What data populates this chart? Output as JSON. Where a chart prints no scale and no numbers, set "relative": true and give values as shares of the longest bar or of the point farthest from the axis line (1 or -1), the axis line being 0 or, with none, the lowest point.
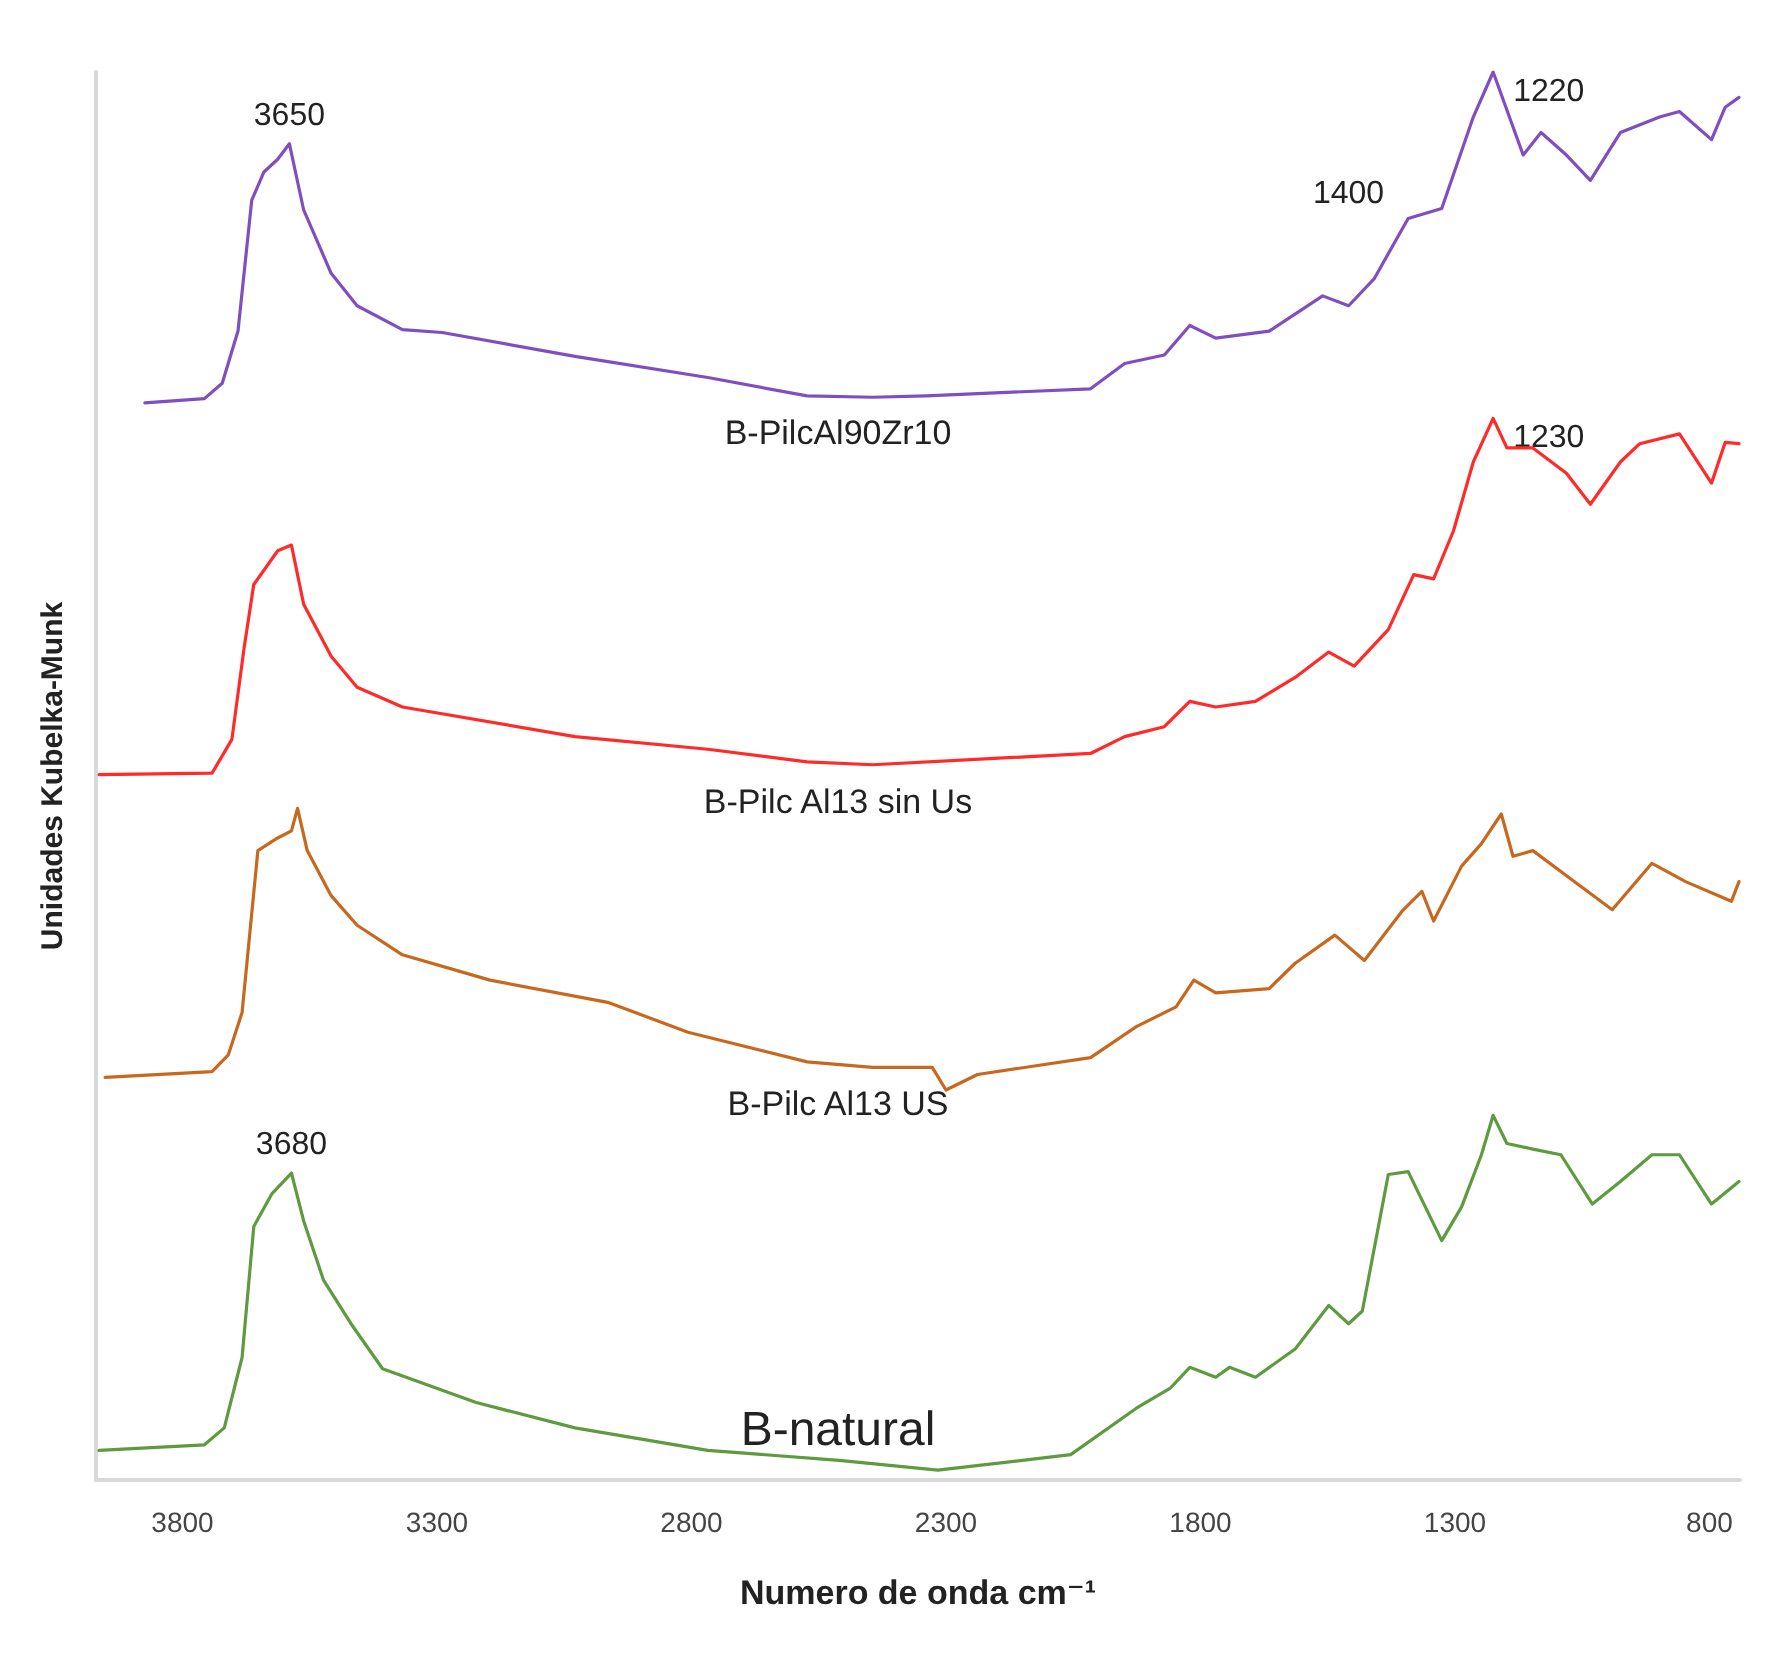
{
  "chart_data": {
    "type": "line",
    "relative": true,
    "xlabel": "Numero de onda cm⁻¹",
    "ylabel": "Unidades Kubelka-Munk",
    "xlim": [
      3970,
      740
    ],
    "xticks": [
      3800,
      3300,
      2800,
      2300,
      1800,
      1300,
      800
    ],
    "tick_labels": "x",
    "grid": false,
    "legend": false,
    "marker": "none",
    "line_style": "solid",
    "annotations": [
      {
        "text": "3650",
        "x": 3590,
        "y": 0.949
      },
      {
        "text": "1400",
        "x": 1392,
        "y": 0.896
      },
      {
        "text": "1220",
        "x": 1225,
        "y": 1.0
      },
      {
        "text": "1230",
        "x": 1225,
        "y": 0.754
      },
      {
        "text": "3680",
        "x": 3586,
        "y": 0.218
      }
    ],
    "series": [
      {
        "name": "B-PilcAl90Zr10",
        "color": "#7f4fc0",
        "x": [
          3874,
          3757,
          3722,
          3691,
          3664,
          3640,
          3613,
          3590,
          3562,
          3508,
          3457,
          3368,
          3290,
          3029,
          2768,
          2573,
          2444,
          2339,
          2016,
          1949,
          1871,
          1821,
          1770,
          1665,
          1560,
          1509,
          1459,
          1392,
          1326,
          1264,
          1225,
          1190,
          1166,
          1131,
          1081,
          1034,
          975,
          898,
          859,
          796,
          769,
          742
        ],
        "values": [
          0.765,
          0.768,
          0.779,
          0.816,
          0.909,
          0.929,
          0.938,
          0.949,
          0.902,
          0.857,
          0.834,
          0.817,
          0.815,
          0.798,
          0.783,
          0.77,
          0.769,
          0.77,
          0.775,
          0.793,
          0.799,
          0.82,
          0.811,
          0.816,
          0.841,
          0.834,
          0.853,
          0.896,
          0.903,
          0.968,
          1.0,
          0.965,
          0.941,
          0.957,
          0.941,
          0.923,
          0.957,
          0.968,
          0.972,
          0.952,
          0.975,
          0.982
        ]
      },
      {
        "name": "B-Pilc Al13 sin Us",
        "color": "#ff2a2a",
        "x": [
          3964,
          3742,
          3703,
          3679,
          3660,
          3613,
          3586,
          3562,
          3508,
          3457,
          3368,
          3029,
          2768,
          2573,
          2444,
          2016,
          1949,
          1871,
          1821,
          1770,
          1692,
          1614,
          1548,
          1498,
          1431,
          1381,
          1342,
          1303,
          1264,
          1225,
          1198,
          1147,
          1081,
          1034,
          975,
          937,
          859,
          796,
          769,
          742
        ],
        "values": [
          0.501,
          0.502,
          0.526,
          0.591,
          0.636,
          0.66,
          0.664,
          0.622,
          0.585,
          0.563,
          0.549,
          0.528,
          0.519,
          0.51,
          0.508,
          0.516,
          0.528,
          0.535,
          0.553,
          0.549,
          0.553,
          0.57,
          0.588,
          0.578,
          0.604,
          0.643,
          0.64,
          0.674,
          0.723,
          0.754,
          0.733,
          0.733,
          0.715,
          0.693,
          0.723,
          0.736,
          0.743,
          0.708,
          0.737,
          0.736
        ]
      },
      {
        "name": "B-Pilc Al13 US",
        "color": "#c8681e",
        "x": [
          3952,
          3742,
          3710,
          3683,
          3652,
          3613,
          3586,
          3574,
          3555,
          3508,
          3457,
          3368,
          3196,
          2962,
          2807,
          2573,
          2444,
          2327,
          2300,
          2238,
          2016,
          1926,
          1848,
          1813,
          1770,
          1665,
          1614,
          1536,
          1478,
          1404,
          1365,
          1342,
          1287,
          1248,
          1209,
          1186,
          1147,
          1069,
          991,
          913,
          847,
          757,
          742
        ],
        "values": [
          0.286,
          0.29,
          0.302,
          0.332,
          0.447,
          0.456,
          0.461,
          0.477,
          0.447,
          0.415,
          0.394,
          0.373,
          0.355,
          0.339,
          0.318,
          0.297,
          0.293,
          0.293,
          0.277,
          0.288,
          0.3,
          0.322,
          0.336,
          0.355,
          0.346,
          0.349,
          0.367,
          0.387,
          0.369,
          0.404,
          0.418,
          0.397,
          0.436,
          0.452,
          0.473,
          0.443,
          0.447,
          0.426,
          0.405,
          0.438,
          0.425,
          0.411,
          0.425
        ]
      },
      {
        "name": "B-natural",
        "color": "#5e9a3e",
        "x": [
          3964,
          3757,
          3718,
          3683,
          3660,
          3625,
          3586,
          3562,
          3523,
          3469,
          3407,
          3223,
          3029,
          2768,
          2510,
          2316,
          2055,
          1926,
          1860,
          1821,
          1770,
          1743,
          1692,
          1614,
          1548,
          1509,
          1482,
          1431,
          1392,
          1326,
          1287,
          1248,
          1225,
          1198,
          1147,
          1092,
          1030,
          975,
          913,
          859,
          796,
          742
        ],
        "values": [
          0.021,
          0.025,
          0.037,
          0.087,
          0.18,
          0.203,
          0.218,
          0.184,
          0.142,
          0.111,
          0.079,
          0.055,
          0.037,
          0.021,
          0.014,
          0.007,
          0.018,
          0.051,
          0.065,
          0.08,
          0.073,
          0.08,
          0.073,
          0.093,
          0.124,
          0.111,
          0.12,
          0.217,
          0.219,
          0.17,
          0.194,
          0.231,
          0.259,
          0.239,
          0.235,
          0.231,
          0.196,
          0.212,
          0.231,
          0.231,
          0.196,
          0.212
        ]
      }
    ]
  }
}
